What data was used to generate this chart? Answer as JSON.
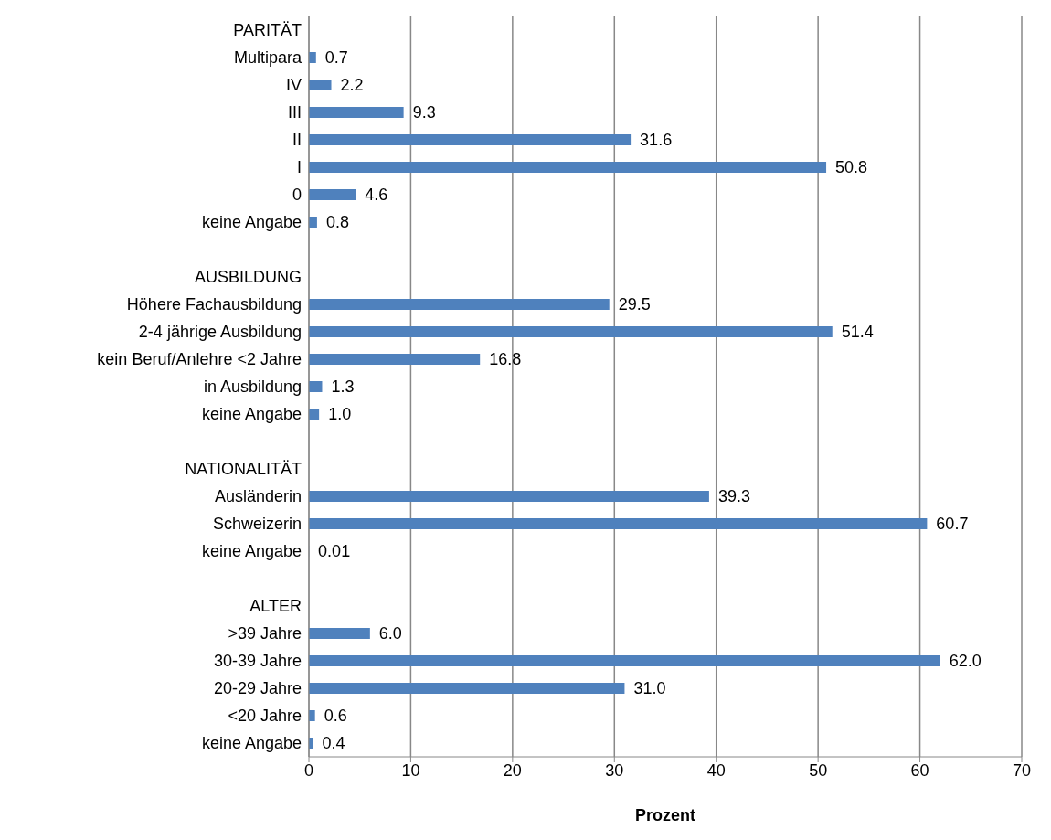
{
  "chart_data": {
    "type": "bar",
    "orientation": "horizontal",
    "xlabel": "Prozent",
    "categories": [
      "PARITÄT",
      "Multipara",
      "IV",
      "III",
      "II",
      "I",
      "0",
      "keine Angabe",
      null,
      "AUSBILDUNG",
      "Höhere Fachausbildung",
      "2-4 jährige Ausbildung",
      "kein Beruf/Anlehre <2 Jahre",
      "in Ausbildung",
      "keine Angabe",
      null,
      "NATIONALITÄT",
      "Ausländerin",
      "Schweizerin",
      "keine Angabe",
      null,
      "ALTER",
      ">39 Jahre",
      "30-39 Jahre",
      "20-29 Jahre",
      "<20 Jahre",
      "keine Angabe"
    ],
    "values": [
      null,
      0.7,
      2.2,
      9.3,
      31.6,
      50.8,
      4.6,
      0.8,
      null,
      null,
      29.5,
      51.4,
      16.8,
      1.3,
      1.0,
      null,
      null,
      39.3,
      60.7,
      0.01,
      null,
      null,
      6.0,
      62.0,
      31.0,
      0.6,
      0.4
    ],
    "value_labels": [
      null,
      "0.7",
      "2.2",
      "9.3",
      "31.6",
      "50.8",
      "4.6",
      "0.8",
      null,
      null,
      "29.5",
      "51.4",
      "16.8",
      "1.3",
      "1.0",
      null,
      null,
      "39.3",
      "60.7",
      "0.01",
      null,
      null,
      "6.0",
      "62.0",
      "31.0",
      "0.6",
      "0.4"
    ],
    "color": "#4f81bd",
    "xlim": [
      0,
      70
    ],
    "xticks": [
      0,
      10,
      20,
      30,
      40,
      50,
      60,
      70
    ],
    "grid": "x"
  }
}
